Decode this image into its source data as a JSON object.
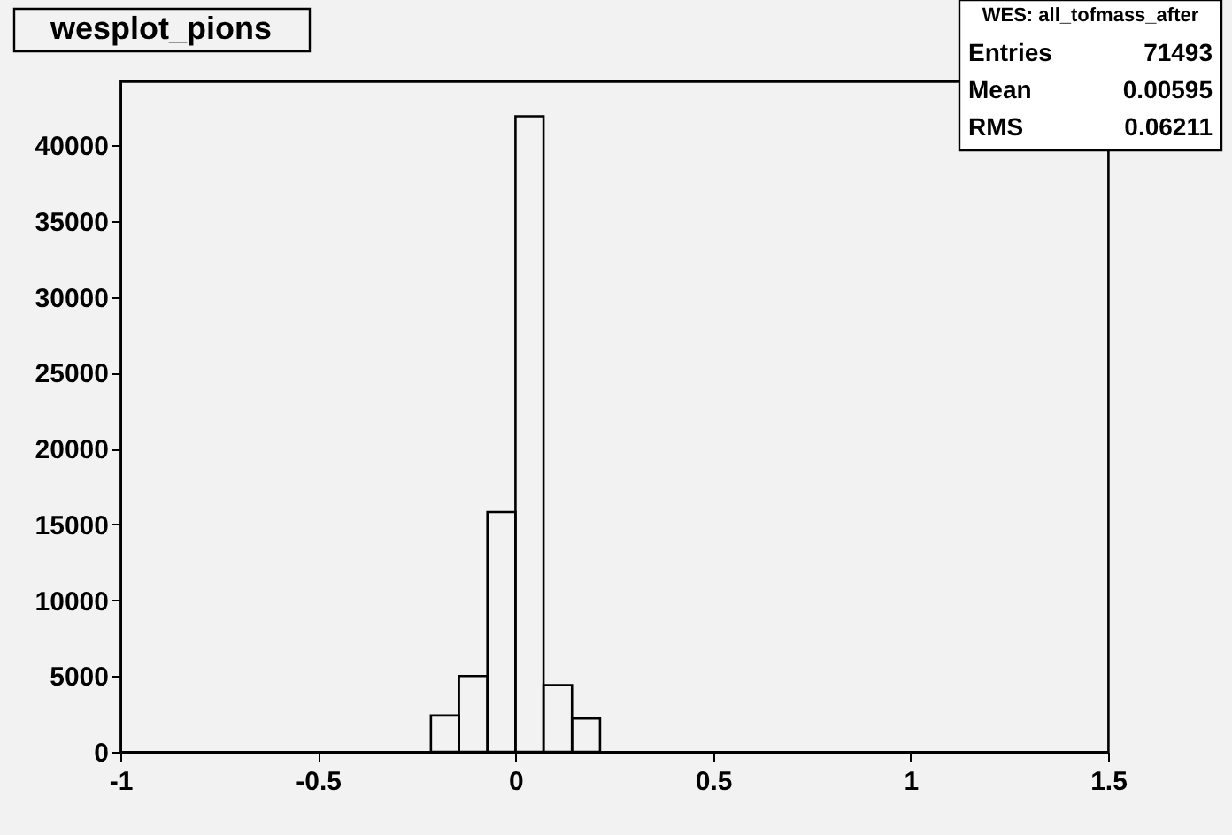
{
  "chart_data": {
    "type": "histogram",
    "title": "wesplot_pions",
    "bins": [
      -0.214,
      -0.143,
      -0.071,
      0,
      0.071,
      0.143,
      0.214
    ],
    "values": [
      2400,
      5000,
      15800,
      41900,
      4400,
      2200
    ],
    "color": "#000000",
    "xlim": [
      -1,
      1.5
    ],
    "xticks": [
      -1,
      -0.5,
      0,
      0.5,
      1,
      1.5
    ],
    "ylim": [
      0,
      44200
    ],
    "yticks": [
      0,
      5000,
      10000,
      15000,
      20000,
      25000,
      30000,
      35000,
      40000
    ],
    "grid": false,
    "annotations": [
      "WES: all_tofmass_after",
      "Entries",
      "71493",
      "Mean",
      "0.00595",
      "RMS",
      "0.06211"
    ]
  }
}
